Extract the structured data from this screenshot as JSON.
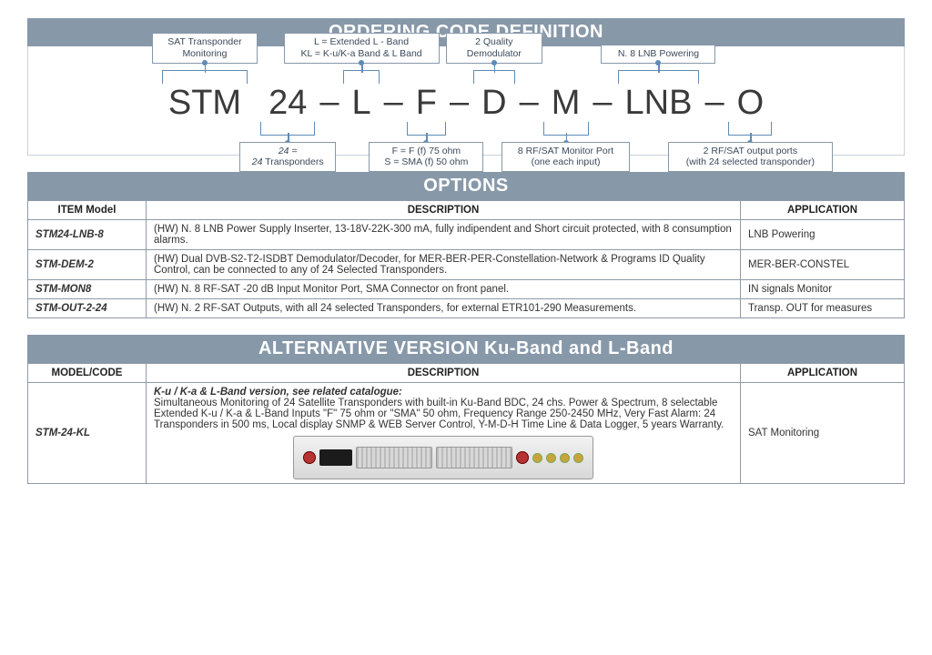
{
  "ordering": {
    "title": "ORDERING CODE DEFINITION",
    "dash": "–",
    "segments": {
      "stm": {
        "text": "STM",
        "note": "SAT Transponder\nMonitoring"
      },
      "n24": {
        "text": "24",
        "note": "24 =\n24 Transponders"
      },
      "L": {
        "text": "L",
        "note": "L = Extended L - Band\nKL = K-u/K-a Band & L Band"
      },
      "F": {
        "text": "F",
        "note": "F = F (f) 75 ohm\nS = SMA (f) 50 ohm"
      },
      "D": {
        "text": "D",
        "note": "2 Quality\nDemodulator"
      },
      "M": {
        "text": "M",
        "note": "8 RF/SAT Monitor Port\n(one each input)"
      },
      "LNB": {
        "text": "LNB",
        "note": "N. 8 LNB Powering"
      },
      "O": {
        "text": "O",
        "note": "2 RF/SAT output ports\n(with 24 selected transponder)"
      }
    },
    "colors": {
      "header_bg": "#8798a9",
      "header_fg": "#ffffff",
      "bracket": "#5f8bb5",
      "border": "#8e9aa8",
      "segtext": "#3a3a3a"
    }
  },
  "options": {
    "title": "OPTIONS",
    "columns": [
      "ITEM Model",
      "DESCRIPTION",
      "APPLICATION"
    ],
    "rows": [
      {
        "model": "STM24-LNB-8",
        "desc": "(HW) N. 8 LNB Power Supply Inserter, 13-18V-22K-300 mA, fully indipendent and Short circuit protected, with 8 consumption alarms.",
        "app": "LNB Powering"
      },
      {
        "model": "STM-DEM-2",
        "desc": "(HW) Dual DVB-S2-T2-ISDBT Demodulator/Decoder, for MER-BER-PER-Constellation-Network & Programs ID Quality Control, can be connected to any of 24 Selected Transponders.",
        "app": "MER-BER-CONSTEL"
      },
      {
        "model": "STM-MON8",
        "desc": "(HW) N. 8 RF-SAT  -20 dB Input Monitor Port, SMA Connector on front panel.",
        "app": "IN signals Monitor"
      },
      {
        "model": "STM-OUT-2-24",
        "desc": "(HW) N. 2 RF-SAT Outputs, with all 24 selected Transponders, for external ETR101-290 Measurements.",
        "app": "Transp. OUT for measures"
      }
    ]
  },
  "alt": {
    "title": "ALTERNATIVE VERSION Ku-Band and L-Band",
    "columns": [
      "MODEL/CODE",
      "DESCRIPTION",
      "APPLICATION"
    ],
    "row": {
      "model": "STM-24-KL",
      "desc_head": "K-u / K-a & L-Band version, see related catalogue:",
      "desc_body": "Simultaneous Monitoring of 24 Satellite Transponders with built-in Ku-Band BDC, 24 chs. Power & Spectrum, 8 selectable Extended K-u / K-a & L-Band Inputs \"F\" 75 ohm or \"SMA\" 50 ohm, Frequency Range 250-2450 MHz, Very Fast Alarm: 24 Transponders in 500 ms, Local display SNMP & WEB Server Control, Y-M-D-H Time Line & Data Logger, 5 years Warranty.",
      "app": "SAT Monitoring"
    }
  }
}
